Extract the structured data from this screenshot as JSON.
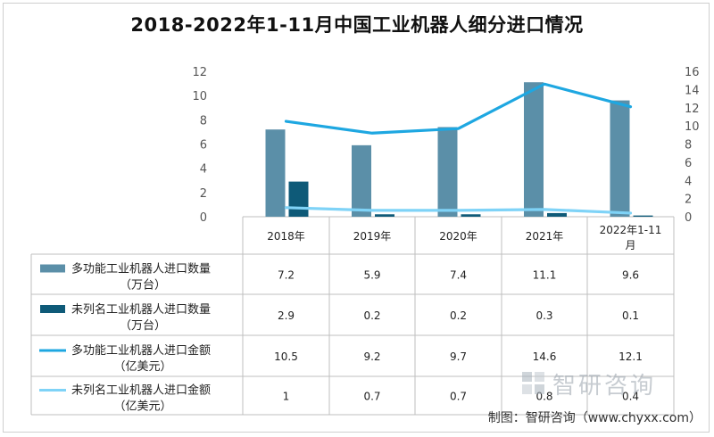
{
  "title": "2018-2022年1-11月中国工业机器人细分进口情况",
  "source": "制图：智研咨询（www.chyxx.com）",
  "watermark": "智研咨询",
  "chart_data": {
    "type": "bar+line",
    "categories": [
      "2018年",
      "2019年",
      "2020年",
      "2021年",
      "2022年1-11月"
    ],
    "left_axis": {
      "min": 0,
      "max": 12,
      "ticks": [
        0,
        2,
        4,
        6,
        8,
        10,
        12
      ]
    },
    "right_axis": {
      "min": 0,
      "max": 16,
      "ticks": [
        0,
        2,
        4,
        6,
        8,
        10,
        12,
        14,
        16
      ]
    },
    "legend_position": "table-left",
    "series": [
      {
        "name": "多功能工业机器人进口数量（万台）",
        "legend_line1": "多功能工业机器人进口数量",
        "legend_line2": "（万台）",
        "type": "bar",
        "axis": "left",
        "color": "#5b8fa8",
        "values": [
          7.2,
          5.9,
          7.4,
          11.1,
          9.6
        ],
        "labels": [
          "7.2",
          "5.9",
          "7.4",
          "11.1",
          "9.6"
        ]
      },
      {
        "name": "未列名工业机器人进口数量（万台）",
        "legend_line1": "未列名工业机器人进口数量",
        "legend_line2": "（万台）",
        "type": "bar",
        "axis": "left",
        "color": "#0e5a78",
        "values": [
          2.9,
          0.2,
          0.2,
          0.3,
          0.1
        ],
        "labels": [
          "2.9",
          "0.2",
          "0.2",
          "0.3",
          "0.1"
        ]
      },
      {
        "name": "多功能工业机器人进口金额（亿美元）",
        "legend_line1": "多功能工业机器人进口金额",
        "legend_line2": "（亿美元）",
        "type": "line",
        "axis": "right",
        "color": "#1ea7e1",
        "values": [
          10.5,
          9.2,
          9.7,
          14.6,
          12.1
        ],
        "labels": [
          "10.5",
          "9.2",
          "9.7",
          "14.6",
          "12.1"
        ]
      },
      {
        "name": "未列名工业机器人进口金额（亿美元）",
        "legend_line1": "未列名工业机器人进口金额",
        "legend_line2": "（亿美元）",
        "type": "line",
        "axis": "right",
        "color": "#7fd3f7",
        "values": [
          1,
          0.7,
          0.7,
          0.8,
          0.4
        ],
        "labels": [
          "1",
          "0.7",
          "0.7",
          "0.8",
          "0.4"
        ]
      }
    ]
  }
}
